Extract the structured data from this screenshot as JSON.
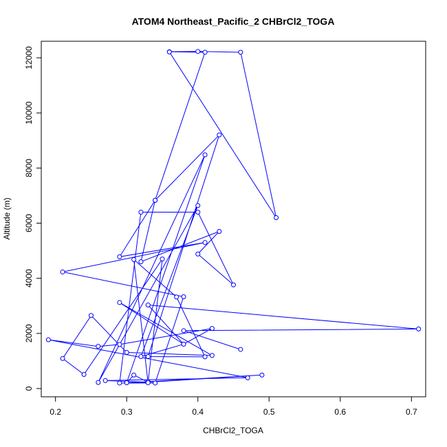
{
  "chart_data": {
    "type": "line",
    "title": "ATOM4 Northeast_Pacific_2 CHBrCl2_TOGA",
    "xlabel": "CHBrCl2_TOGA",
    "ylabel": "Altitude (m)",
    "xlim": [
      0.18,
      0.72
    ],
    "ylim": [
      -300,
      12600
    ],
    "xticks": [
      "0.2",
      "0.3",
      "0.4",
      "0.5",
      "0.6",
      "0.7"
    ],
    "yticks": [
      "0",
      "2000",
      "4000",
      "6000",
      "8000",
      "10000",
      "12000"
    ],
    "grid": false,
    "color": "#0000ff",
    "series": [
      {
        "x": [
          0.46,
          0.38,
          0.71,
          0.33,
          0.38,
          0.42,
          0.29,
          0.26,
          0.19,
          0.47,
          0.27,
          0.33,
          0.35,
          0.24,
          0.21,
          0.25,
          0.3,
          0.42,
          0.29,
          0.38,
          0.32,
          0.4,
          0.26,
          0.41,
          0.3,
          0.31,
          0.33,
          0.49,
          0.33,
          0.3,
          0.34,
          0.38,
          0.21,
          0.41,
          0.29,
          0.34,
          0.43,
          0.33,
          0.41,
          0.37,
          0.31,
          0.33,
          0.29,
          0.32,
          0.4,
          0.45,
          0.4,
          0.43,
          0.32,
          0.34,
          0.41,
          0.36,
          0.4,
          0.46,
          0.51,
          0.36
        ],
        "y": [
          1420,
          2100,
          2160,
          3030,
          1610,
          2180,
          1600,
          1530,
          1770,
          390,
          290,
          230,
          4700,
          510,
          1090,
          2650,
          1310,
          1200,
          3120,
          1610,
          1160,
          6640,
          220,
          8480,
          210,
          490,
          230,
          490,
          250,
          210,
          200,
          3330,
          4230,
          5300,
          4780,
          6830,
          9200,
          1160,
          1150,
          3320,
          4680,
          210,
          200,
          6400,
          6400,
          3760,
          4880,
          5700,
          4600,
          6830,
          12200,
          12220,
          12230,
          12200,
          6200,
          12210
        ]
      }
    ]
  }
}
